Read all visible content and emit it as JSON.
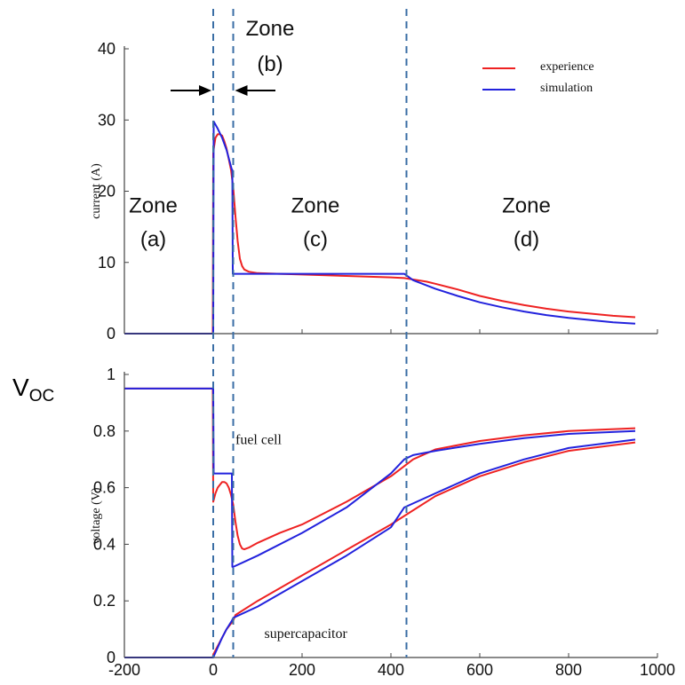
{
  "chart_data": [
    {
      "type": "line",
      "title": "",
      "xlabel": "",
      "ylabel": "current (A)",
      "xlim": [
        -200,
        1000
      ],
      "ylim": [
        0,
        40
      ],
      "ytick_labels": [
        "0",
        "10",
        "20",
        "30",
        "40"
      ],
      "yticks": [
        0,
        10,
        20,
        30,
        40
      ],
      "legend": {
        "placement": "top-right",
        "entries": [
          "experience",
          "simulation"
        ]
      },
      "colors": {
        "experience": "#ee2222",
        "simulation": "#2222dd"
      },
      "series": [
        {
          "name": "experience",
          "x": [
            -200,
            -1,
            0,
            5,
            10,
            15,
            20,
            25,
            30,
            35,
            40,
            45,
            50,
            55,
            60,
            65,
            70,
            80,
            100,
            150,
            200,
            300,
            400,
            430,
            450,
            480,
            500,
            550,
            600,
            650,
            700,
            750,
            800,
            850,
            900,
            950
          ],
          "y": [
            0,
            0,
            25.5,
            27.5,
            28,
            28,
            27.8,
            27,
            26,
            24.5,
            23,
            20.5,
            16.5,
            13,
            10.5,
            9.5,
            9,
            8.7,
            8.5,
            8.4,
            8.3,
            8.1,
            7.9,
            7.8,
            7.6,
            7.3,
            7,
            6.2,
            5.3,
            4.6,
            4,
            3.5,
            3.1,
            2.8,
            2.5,
            2.3
          ]
        },
        {
          "name": "simulation",
          "x": [
            -200,
            -1,
            0,
            1,
            10,
            20,
            30,
            42,
            43,
            44,
            45,
            50,
            100,
            200,
            300,
            400,
            430,
            450,
            500,
            550,
            600,
            650,
            700,
            750,
            800,
            850,
            900,
            950
          ],
          "y": [
            0,
            0,
            0,
            29.8,
            28.8,
            27.5,
            25.8,
            23,
            23,
            8.4,
            8.4,
            8.4,
            8.4,
            8.4,
            8.4,
            8.4,
            8.4,
            7.5,
            6.3,
            5.3,
            4.4,
            3.7,
            3.1,
            2.6,
            2.2,
            1.9,
            1.6,
            1.4
          ]
        }
      ],
      "annotations": [
        {
          "text_line1": "Zone",
          "text_line2": "(a)",
          "x": -135,
          "y": 14
        },
        {
          "text_line1": "Zone",
          "text_line2": "(c)",
          "x": 230,
          "y": 14
        },
        {
          "text_line1": "Zone",
          "text_line2": "(d)",
          "x": 705,
          "y": 14
        }
      ]
    },
    {
      "type": "line",
      "title": "",
      "xlabel": "",
      "ylabel": "voltage (V)",
      "xlim": [
        -200,
        1000
      ],
      "ylim": [
        0,
        1
      ],
      "xticks": [
        -200,
        0,
        200,
        400,
        600,
        800,
        1000
      ],
      "xtick_labels": [
        "-200",
        "0",
        "200",
        "400",
        "600",
        "800",
        "1000"
      ],
      "yticks": [
        0,
        0.2,
        0.4,
        0.6,
        0.8,
        1
      ],
      "ytick_labels": [
        "0",
        "0.2",
        "0.4",
        "0.6",
        "0.8",
        "1"
      ],
      "series": [
        {
          "name": "fuel cell experience",
          "x": [
            -200,
            -1,
            0,
            5,
            10,
            15,
            20,
            25,
            30,
            35,
            40,
            45,
            50,
            55,
            60,
            65,
            70,
            80,
            100,
            150,
            200,
            300,
            400,
            450,
            500,
            600,
            700,
            800,
            950
          ],
          "y": [
            0.95,
            0.95,
            0.55,
            0.58,
            0.6,
            0.61,
            0.62,
            0.62,
            0.615,
            0.6,
            0.575,
            0.54,
            0.48,
            0.43,
            0.4,
            0.385,
            0.382,
            0.388,
            0.405,
            0.44,
            0.47,
            0.55,
            0.64,
            0.7,
            0.735,
            0.765,
            0.785,
            0.8,
            0.81
          ]
        },
        {
          "name": "fuel cell simulation",
          "x": [
            -200,
            -1,
            0,
            1,
            42,
            43,
            44,
            45,
            100,
            200,
            300,
            400,
            430,
            450,
            500,
            600,
            700,
            800,
            950
          ],
          "y": [
            0.95,
            0.95,
            0.95,
            0.65,
            0.65,
            0.32,
            0.32,
            0.32,
            0.36,
            0.44,
            0.53,
            0.65,
            0.7,
            0.715,
            0.73,
            0.755,
            0.775,
            0.79,
            0.8
          ]
        },
        {
          "name": "supercapacitor experience",
          "x": [
            -200,
            -1,
            0,
            10,
            20,
            30,
            40,
            45,
            50,
            100,
            200,
            300,
            400,
            430,
            500,
            600,
            700,
            800,
            950
          ],
          "y": [
            0,
            0,
            0.01,
            0.04,
            0.07,
            0.1,
            0.12,
            0.13,
            0.15,
            0.2,
            0.29,
            0.38,
            0.47,
            0.5,
            0.57,
            0.64,
            0.69,
            0.73,
            0.76
          ]
        },
        {
          "name": "supercapacitor simulation",
          "x": [
            -200,
            -1,
            0,
            10,
            20,
            30,
            42,
            45,
            100,
            200,
            300,
            400,
            430,
            500,
            600,
            700,
            800,
            950
          ],
          "y": [
            0,
            0,
            0,
            0.035,
            0.07,
            0.1,
            0.13,
            0.14,
            0.18,
            0.27,
            0.36,
            0.46,
            0.53,
            0.58,
            0.65,
            0.7,
            0.74,
            0.77
          ]
        }
      ],
      "series_colors": [
        "#ee2222",
        "#2222dd",
        "#ee2222",
        "#2222dd"
      ],
      "annotations": [
        {
          "text": "fuel cell",
          "x": 50,
          "y": 0.77
        },
        {
          "text": "supercapacitor",
          "x": 115,
          "y": 0.085
        },
        {
          "text_main": "V",
          "text_sub": "OC",
          "x": -270,
          "y": 0.97
        }
      ]
    }
  ],
  "zone_b": {
    "line1": "Zone",
    "line2": "(b)"
  },
  "dividers_x": [
    0,
    45,
    435
  ]
}
